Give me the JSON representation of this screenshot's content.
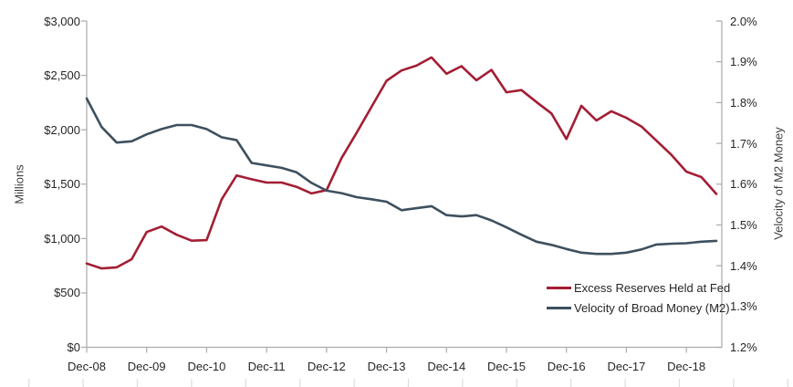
{
  "chart_data": {
    "type": "line",
    "title": "",
    "grid": false,
    "x": [
      "Dec-08",
      "Mar-09",
      "Jun-09",
      "Sep-09",
      "Dec-09",
      "Mar-10",
      "Jun-10",
      "Sep-10",
      "Dec-10",
      "Mar-11",
      "Jun-11",
      "Sep-11",
      "Dec-11",
      "Mar-12",
      "Jun-12",
      "Sep-12",
      "Dec-12",
      "Mar-13",
      "Jun-13",
      "Sep-13",
      "Dec-13",
      "Mar-14",
      "Jun-14",
      "Sep-14",
      "Dec-14",
      "Mar-15",
      "Jun-15",
      "Sep-15",
      "Dec-15",
      "Mar-16",
      "Jun-16",
      "Sep-16",
      "Dec-16",
      "Mar-17",
      "Jun-17",
      "Sep-17",
      "Dec-17",
      "Mar-18",
      "Jun-18",
      "Sep-18",
      "Dec-18",
      "Mar-19",
      "Jun-19"
    ],
    "x_axis": {
      "tick_labels": [
        "Dec-08",
        "Dec-09",
        "Dec-10",
        "Dec-11",
        "Dec-12",
        "Dec-13",
        "Dec-14",
        "Dec-15",
        "Dec-16",
        "Dec-17",
        "Dec-18"
      ]
    },
    "left_axis": {
      "title": "Millions",
      "min": 0,
      "max": 3000,
      "step": 500,
      "tick_labels": [
        "$0",
        "$500",
        "$1,000",
        "$1,500",
        "$2,000",
        "$2,500",
        "$3,000"
      ]
    },
    "right_axis": {
      "title": "Velocity of M2 Money",
      "min": 1.2,
      "max": 2.0,
      "step": 0.1,
      "tick_labels": [
        "1.2%",
        "1.3%",
        "1.4%",
        "1.5%",
        "1.6%",
        "1.7%",
        "1.8%",
        "1.9%",
        "2.0%"
      ]
    },
    "legend": {
      "position": "bottom-right"
    },
    "series": [
      {
        "name": "Excess Reserves Held at Fed",
        "axis": "left",
        "color": "#A31E34",
        "values": [
          770,
          725,
          735,
          810,
          1060,
          1110,
          1035,
          980,
          985,
          1360,
          1580,
          1545,
          1515,
          1515,
          1475,
          1415,
          1445,
          1740,
          1970,
          2210,
          2450,
          2545,
          2590,
          2665,
          2515,
          2585,
          2455,
          2550,
          2345,
          2365,
          2255,
          2150,
          1915,
          2220,
          2085,
          2170,
          2110,
          2030,
          1900,
          1770,
          1615,
          1565,
          1410
        ]
      },
      {
        "name": "Velocity of Broad Money (M2)",
        "axis": "right",
        "color": "#3E505E",
        "values": [
          1.81,
          1.74,
          1.702,
          1.705,
          1.722,
          1.735,
          1.745,
          1.745,
          1.735,
          1.715,
          1.708,
          1.652,
          1.646,
          1.64,
          1.629,
          1.603,
          1.584,
          1.578,
          1.568,
          1.563,
          1.557,
          1.536,
          1.541,
          1.546,
          1.524,
          1.521,
          1.524,
          1.511,
          1.494,
          1.476,
          1.459,
          1.451,
          1.441,
          1.432,
          1.429,
          1.429,
          1.432,
          1.44,
          1.452,
          1.454,
          1.455,
          1.459,
          1.461
        ]
      }
    ]
  },
  "colors": {
    "axis_line": "#ABABAB",
    "tick_label": "#262626",
    "axis_title": "#404040",
    "minor_tick": "#DCDCDC",
    "background": "#FFFFFF"
  }
}
